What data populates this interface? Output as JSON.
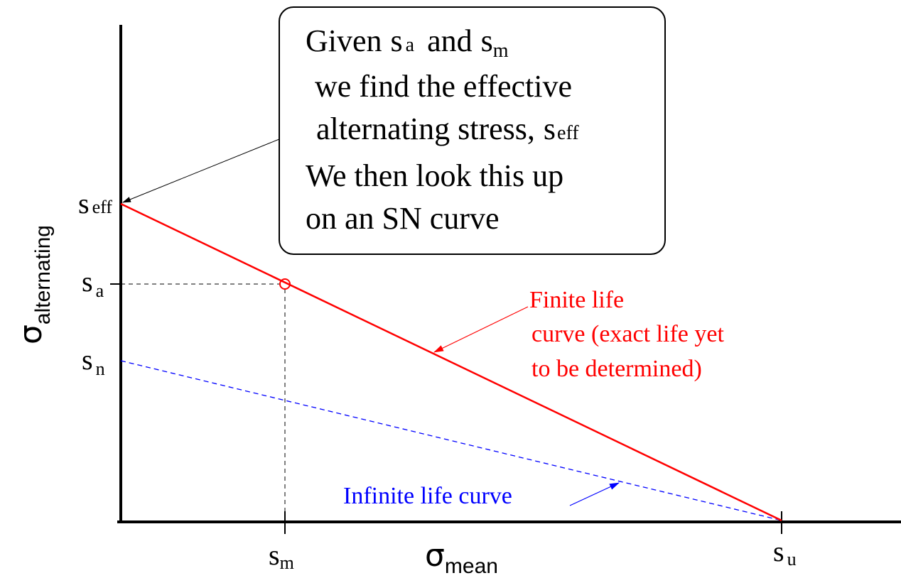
{
  "x_axis": {
    "symbol": "σ",
    "subscript": "mean"
  },
  "y_axis": {
    "symbol": "σ",
    "subscript": "alternating"
  },
  "y_labels": [
    {
      "base": "s",
      "sub": "eff"
    },
    {
      "base": "s",
      "sub": "a"
    },
    {
      "base": "s",
      "sub": "n"
    }
  ],
  "x_labels": [
    {
      "base": "s",
      "sub": "m"
    },
    {
      "base": "s",
      "sub": "u"
    }
  ],
  "callout": {
    "lines": [
      [
        {
          "text": "Given"
        },
        {
          "base": "s",
          "sub": "a"
        },
        {
          "text": "and"
        },
        {
          "base": "s",
          "sub": "m"
        }
      ],
      [
        {
          "text": "we find the effective"
        }
      ],
      [
        {
          "text": "alternating stress,"
        },
        {
          "base": "s",
          "sub": "eff"
        }
      ],
      [
        {
          "text": "We then look this up"
        }
      ],
      [
        {
          "text": "on an SN curve"
        }
      ]
    ]
  },
  "annotations": {
    "finite": [
      "Finite life",
      "curve (exact life yet",
      "to be determined)"
    ],
    "infinite": "Infinite life curve"
  }
}
